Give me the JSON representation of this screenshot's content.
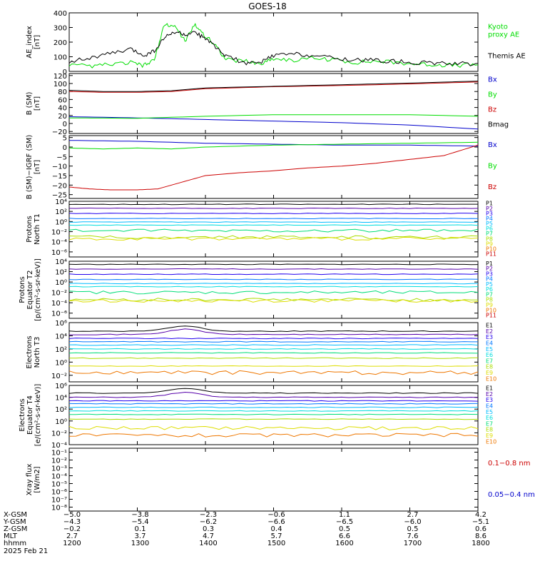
{
  "title": "GOES-18",
  "date_label": "2025 Feb 21",
  "colors": {
    "black": "#000000",
    "green": "#00dd00",
    "blue": "#0000cc",
    "red": "#cc0000",
    "p": [
      "#000000",
      "#5500aa",
      "#2200ee",
      "#0077ff",
      "#00bbff",
      "#00dddd",
      "#00dd77",
      "#aadd00",
      "#dddd00",
      "#ee7700",
      "#cc0000"
    ]
  },
  "chart_data": [
    {
      "type": "line",
      "ylabel": "AE_index\n[nT]",
      "ylim": [
        0,
        400
      ],
      "yticks": [
        "400",
        "300",
        "200",
        "100",
        "0"
      ],
      "ytick_vals": [
        400,
        300,
        200,
        100,
        0
      ],
      "legend": [
        {
          "text": "Kyoto\nproxy AE",
          "color": "green"
        },
        {
          "text": "Themis AE",
          "color": "black"
        }
      ],
      "series": [
        {
          "name": "Kyoto proxy AE",
          "color": "green",
          "x": [
            12.0,
            12.3,
            12.6,
            12.9,
            13.1,
            13.25,
            13.4,
            13.55,
            13.7,
            13.85,
            14.0,
            14.15,
            14.3,
            14.6,
            14.8,
            15.0,
            15.3,
            15.6,
            15.9,
            16.2,
            16.5,
            16.8,
            17.1,
            17.4,
            17.7,
            18.0
          ],
          "y": [
            40,
            35,
            45,
            60,
            40,
            80,
            320,
            310,
            210,
            320,
            240,
            180,
            80,
            70,
            50,
            90,
            75,
            90,
            80,
            60,
            70,
            60,
            50,
            45,
            40,
            45
          ]
        },
        {
          "name": "Themis AE",
          "color": "black",
          "x": [
            12.0,
            12.3,
            12.6,
            12.9,
            13.1,
            13.25,
            13.4,
            13.55,
            13.7,
            13.85,
            14.0,
            14.15,
            14.3,
            14.6,
            14.8,
            15.0,
            15.3,
            15.6,
            15.9,
            16.2,
            16.5,
            16.8,
            17.1,
            17.4,
            17.7,
            18.0
          ],
          "y": [
            70,
            90,
            120,
            150,
            110,
            140,
            230,
            270,
            250,
            260,
            230,
            160,
            110,
            50,
            60,
            110,
            120,
            110,
            90,
            80,
            75,
            70,
            60,
            55,
            50,
            55
          ]
        }
      ]
    },
    {
      "type": "line",
      "ylabel": "B (SM)\n[nT]",
      "ylim": [
        -25,
        125
      ],
      "yticks": [
        "120",
        "100",
        "80",
        "60",
        "40",
        "20",
        "0",
        "−20"
      ],
      "ytick_vals": [
        120,
        100,
        80,
        60,
        40,
        20,
        0,
        -20
      ],
      "legend": [
        {
          "text": "Bx",
          "color": "blue"
        },
        {
          "text": "By",
          "color": "green"
        },
        {
          "text": "Bz",
          "color": "red"
        },
        {
          "text": "Bmag",
          "color": "black"
        }
      ],
      "series": [
        {
          "name": "Bx",
          "color": "blue",
          "x": [
            12,
            13,
            14,
            15,
            16,
            17,
            18
          ],
          "y": [
            17,
            14,
            10,
            6,
            2,
            -4,
            -14
          ]
        },
        {
          "name": "By",
          "color": "green",
          "x": [
            12,
            13,
            14,
            15,
            16,
            17,
            18
          ],
          "y": [
            14,
            13,
            18,
            22,
            22,
            22,
            18
          ]
        },
        {
          "name": "Bz",
          "color": "red",
          "x": [
            12,
            12.5,
            13,
            13.5,
            14,
            15,
            16,
            17,
            18
          ],
          "y": [
            80,
            78,
            78,
            80,
            87,
            92,
            95,
            99,
            104
          ]
        },
        {
          "name": "Bmag",
          "color": "black",
          "x": [
            12,
            12.5,
            13,
            13.5,
            14,
            15,
            16,
            17,
            18
          ],
          "y": [
            83,
            80,
            80,
            82,
            89,
            93,
            97,
            101,
            106
          ]
        }
      ]
    },
    {
      "type": "line",
      "ylabel": "B (SM)−IGRF (SM)\n[nT]",
      "ylim": [
        -27,
        6
      ],
      "yticks": [
        "5",
        "0",
        "−5",
        "−10",
        "−15",
        "−20",
        "−25"
      ],
      "ytick_vals": [
        5,
        0,
        -5,
        -10,
        -15,
        -20,
        -25
      ],
      "legend": [
        {
          "text": "Bx",
          "color": "blue"
        },
        {
          "text": "By",
          "color": "green"
        },
        {
          "text": "Bz",
          "color": "red"
        }
      ],
      "series": [
        {
          "name": "Bx",
          "color": "blue",
          "x": [
            12,
            13,
            14,
            15,
            16,
            17,
            18
          ],
          "y": [
            3.5,
            3,
            2,
            1.5,
            1,
            1,
            0.5
          ]
        },
        {
          "name": "By",
          "color": "green",
          "x": [
            12,
            12.5,
            13,
            13.5,
            14,
            15,
            16,
            17,
            18
          ],
          "y": [
            -0.5,
            -1,
            -0.5,
            -1,
            0,
            1,
            1.5,
            2,
            2.5
          ]
        },
        {
          "name": "Bz",
          "color": "red",
          "x": [
            12,
            12.3,
            12.6,
            13,
            13.3,
            13.6,
            14,
            14.5,
            15,
            15.5,
            16,
            16.5,
            17,
            17.5,
            18
          ],
          "y": [
            -21,
            -22,
            -22.5,
            -22.5,
            -22,
            -19,
            -15,
            -13.5,
            -12.5,
            -11,
            -10,
            -8.5,
            -6.5,
            -4.5,
            1
          ]
        }
      ]
    },
    {
      "type": "line",
      "log": true,
      "ylabel": "Protons\nNorth T1",
      "ylim": [
        -7,
        4
      ],
      "yticks": [
        "10⁴",
        "10²",
        "10⁰",
        "10⁻²",
        "10⁻⁴",
        "10⁻⁶"
      ],
      "ytick_vals": [
        4,
        2,
        0,
        -2,
        -4,
        -6
      ],
      "legend": [
        "P1",
        "P2",
        "P3",
        "P4",
        "P5",
        "P6",
        "P7",
        "P8",
        "P9",
        "P10",
        "P11"
      ],
      "series_levels": [
        3.4,
        2.6,
        1.6,
        0.6,
        -0.1,
        -0.7,
        -1.8,
        -3.1,
        -3.4,
        -99,
        -99
      ]
    },
    {
      "type": "line",
      "log": true,
      "ylabel": "Protons\nEquator T2\n[p/(cm²-s-sr-keV)]",
      "ylim": [
        -7,
        4
      ],
      "yticks": [
        "10⁴",
        "10²",
        "10⁰",
        "10⁻²",
        "10⁻⁴",
        "10⁻⁶"
      ],
      "ytick_vals": [
        4,
        2,
        0,
        -2,
        -4,
        -6
      ],
      "legend": [
        "P1",
        "P2",
        "P3",
        "P4",
        "P5",
        "P6",
        "P7",
        "P8",
        "P9",
        "P10",
        "P11"
      ],
      "series_levels": [
        3.4,
        2.5,
        1.5,
        0.5,
        -0.3,
        -0.9,
        -2.0,
        -3.4,
        -3.6,
        -99,
        -99
      ]
    },
    {
      "type": "line",
      "log": true,
      "ylabel": "Electrons\nNorth T3",
      "ylim": [
        -3,
        6
      ],
      "yticks": [
        "10⁶",
        "10⁴",
        "10²",
        "10⁰",
        "10⁻²"
      ],
      "ytick_vals": [
        6,
        4,
        2,
        0,
        -2
      ],
      "legend": [
        "E1",
        "E2",
        "E3",
        "E4",
        "E5",
        "E6",
        "E7",
        "E8",
        "E9",
        "E10"
      ],
      "series_levels": [
        4.7,
        4.2,
        3.6,
        3.1,
        2.6,
        2.0,
        1.4,
        0.6,
        -0.6,
        -1.6
      ]
    },
    {
      "type": "line",
      "log": true,
      "ylabel": "Electrons\nEquator T4\n[e/(cm²-s-sr-keV)]",
      "ylim": [
        -4,
        6
      ],
      "yticks": [
        "10⁶",
        "10⁴",
        "10²",
        "10⁰",
        "10⁻²",
        "10⁻⁴"
      ],
      "ytick_vals": [
        6,
        4,
        2,
        0,
        -2,
        -4
      ],
      "legend": [
        "E1",
        "E2",
        "E3",
        "E4",
        "E5",
        "E6",
        "E7",
        "E8",
        "E9",
        "E10"
      ],
      "series_levels": [
        4.7,
        4.0,
        3.4,
        2.9,
        2.3,
        1.7,
        1.1,
        0.3,
        -1.2,
        -2.4
      ]
    },
    {
      "type": "line",
      "log": true,
      "ylabel": "Xray flux\n[W/m2]",
      "ylim": [
        -8.5,
        -0.5
      ],
      "yticks": [
        "10⁻¹",
        "10⁻²",
        "10⁻³",
        "10⁻⁴",
        "10⁻⁵",
        "10⁻⁶",
        "10⁻⁷",
        "10⁻⁸"
      ],
      "ytick_vals": [
        -1,
        -2,
        -3,
        -4,
        -5,
        -6,
        -7,
        -8
      ],
      "legend": [
        {
          "text": "0.1−0.8 nm",
          "color": "red"
        },
        {
          "text": "0.05−0.4 nm",
          "color": "blue"
        }
      ],
      "series": []
    }
  ],
  "x_axis": {
    "hours": [
      12,
      13,
      14,
      15,
      16,
      17,
      18
    ],
    "row_labels": [
      "X-GSM",
      "Y-GSM",
      "Z-GSM",
      "MLT",
      "hhmm"
    ],
    "columns": [
      [
        "−5.0",
        "−3.8",
        "−2.3",
        "−0.6",
        "1.1",
        "2.7",
        "4.2"
      ],
      [
        "−4.3",
        "−5.4",
        "−6.2",
        "−6.6",
        "−6.5",
        "−6.0",
        "−5.1"
      ],
      [
        "−0.2",
        "0.1",
        "0.3",
        "0.4",
        "0.5",
        "0.5",
        "0.6"
      ],
      [
        "2.7",
        "3.7",
        "4.7",
        "5.7",
        "6.6",
        "7.6",
        "8.6"
      ],
      [
        "1200",
        "1300",
        "1400",
        "1500",
        "1600",
        "1700",
        "1800"
      ]
    ]
  }
}
